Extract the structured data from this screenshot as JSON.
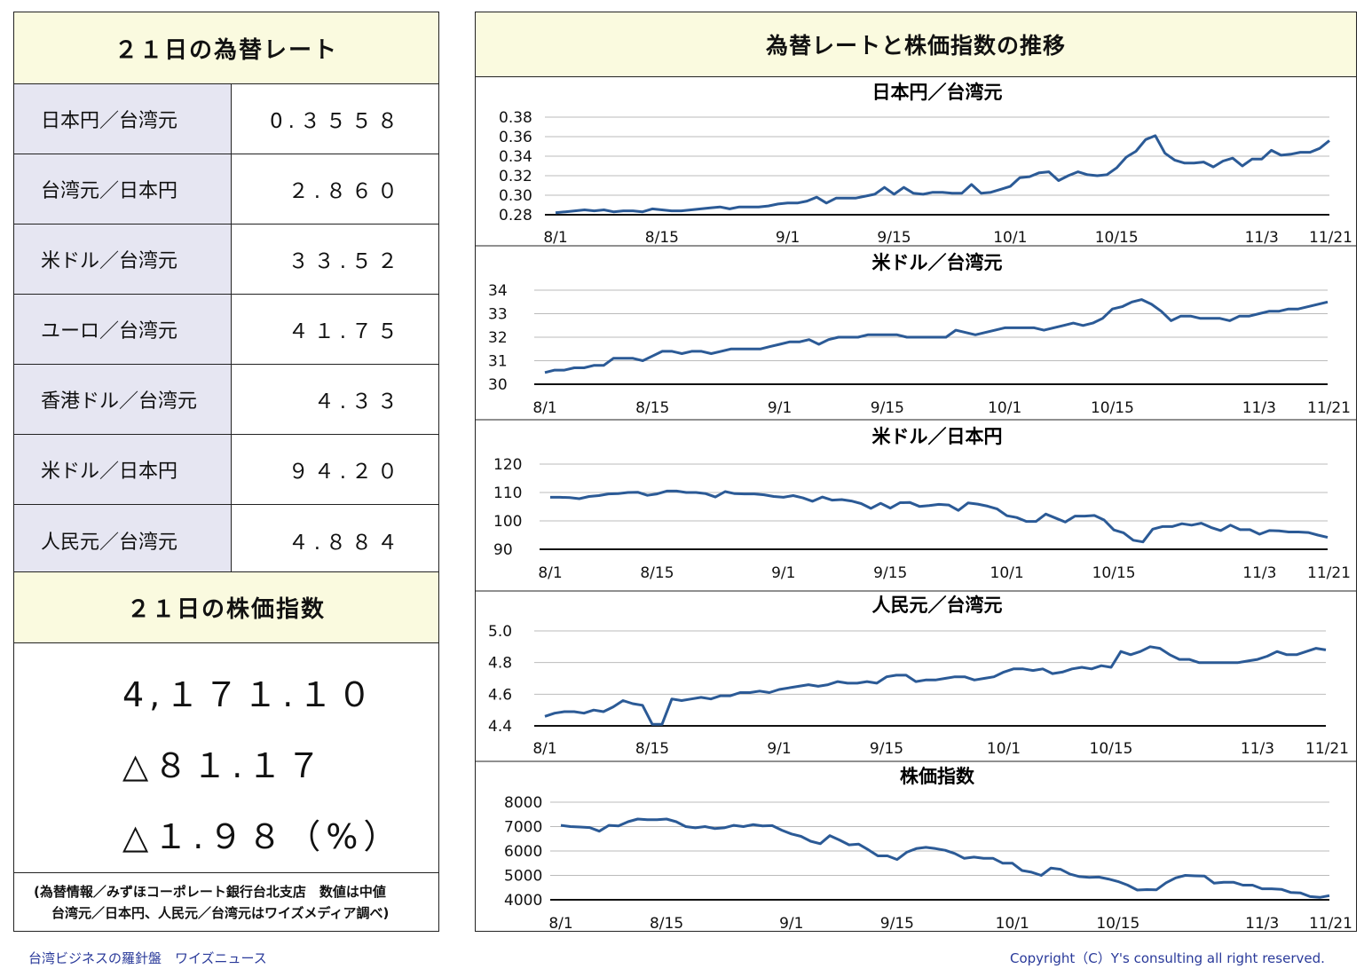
{
  "rates_panel": {
    "title": "２１日の為替レート",
    "rows": [
      {
        "name": "日本円／台湾元",
        "value": "0.３５５８"
      },
      {
        "name": "台湾元／日本円",
        "value": "２.８６０"
      },
      {
        "name": "米ドル／台湾元",
        "value": "３３.５２"
      },
      {
        "name": "ユーロ／台湾元",
        "value": "４１.７５"
      },
      {
        "name": "香港ドル／台湾元",
        "value": "４.３３"
      },
      {
        "name": "米ドル／日本円",
        "value": "９４.２０"
      },
      {
        "name": "人民元／台湾元",
        "value": "４.８８４"
      }
    ]
  },
  "stock_panel": {
    "title": "２１日の株価指数",
    "index_value": "4,１７１.１０",
    "change": "△８１.１７",
    "change_pct": "△１.９８（%）"
  },
  "source_note": {
    "line1": "(為替情報／みずほコーポレート銀行台北支店　数値は中値",
    "line2": "台湾元／日本円、人民元／台湾元はワイズメディア調べ)"
  },
  "charts_panel": {
    "title": "為替レートと株価指数の推移"
  },
  "footer": {
    "left": "台湾ビジネスの羅針盤　ワイズニュース",
    "right": "Copyright（C）Y's consulting all right reserved."
  },
  "colors": {
    "line": "#2b5a96",
    "header_bg": "#fafadf",
    "label_bg": "#e6e6f2"
  },
  "chart_data": [
    {
      "type": "line",
      "title": "日本円／台湾元",
      "x_tick_labels": [
        "8/1",
        "8/15",
        "9/1",
        "9/15",
        "10/1",
        "10/15",
        "11/3",
        "11/21"
      ],
      "y_tick_labels": [
        "0.38",
        "0.36",
        "0.34",
        "0.32",
        "0.30",
        "0.28"
      ],
      "ylim": [
        0.28,
        0.38
      ],
      "grid": true,
      "values": [
        0.282,
        0.283,
        0.284,
        0.285,
        0.284,
        0.285,
        0.283,
        0.284,
        0.284,
        0.283,
        0.286,
        0.285,
        0.284,
        0.284,
        0.285,
        0.286,
        0.287,
        0.288,
        0.286,
        0.288,
        0.288,
        0.288,
        0.289,
        0.291,
        0.292,
        0.292,
        0.294,
        0.298,
        0.292,
        0.297,
        0.297,
        0.297,
        0.299,
        0.301,
        0.308,
        0.301,
        0.308,
        0.302,
        0.301,
        0.303,
        0.303,
        0.302,
        0.302,
        0.311,
        0.302,
        0.303,
        0.306,
        0.309,
        0.318,
        0.319,
        0.323,
        0.324,
        0.315,
        0.32,
        0.324,
        0.321,
        0.32,
        0.321,
        0.328,
        0.339,
        0.345,
        0.357,
        0.361,
        0.343,
        0.336,
        0.333,
        0.333,
        0.334,
        0.329,
        0.335,
        0.338,
        0.33,
        0.337,
        0.337,
        0.346,
        0.341,
        0.342,
        0.344,
        0.344,
        0.348,
        0.356
      ]
    },
    {
      "type": "line",
      "title": "米ドル／台湾元",
      "x_tick_labels": [
        "8/1",
        "8/15",
        "9/1",
        "9/15",
        "10/1",
        "10/15",
        "11/3",
        "11/21"
      ],
      "y_tick_labels": [
        "34",
        "33",
        "32",
        "31",
        "30"
      ],
      "ylim": [
        30,
        34
      ],
      "grid": true,
      "values": [
        30.5,
        30.6,
        30.6,
        30.7,
        30.7,
        30.8,
        30.8,
        31.1,
        31.1,
        31.1,
        31.0,
        31.2,
        31.4,
        31.4,
        31.3,
        31.4,
        31.4,
        31.3,
        31.4,
        31.5,
        31.5,
        31.5,
        31.5,
        31.6,
        31.7,
        31.8,
        31.8,
        31.9,
        31.7,
        31.9,
        32.0,
        32.0,
        32.0,
        32.1,
        32.1,
        32.1,
        32.1,
        32.0,
        32.0,
        32.0,
        32.0,
        32.0,
        32.3,
        32.2,
        32.1,
        32.2,
        32.3,
        32.4,
        32.4,
        32.4,
        32.4,
        32.3,
        32.4,
        32.5,
        32.6,
        32.5,
        32.6,
        32.8,
        33.2,
        33.3,
        33.5,
        33.6,
        33.4,
        33.1,
        32.7,
        32.9,
        32.9,
        32.8,
        32.8,
        32.8,
        32.7,
        32.9,
        32.9,
        33.0,
        33.1,
        33.1,
        33.2,
        33.2,
        33.3,
        33.4,
        33.5
      ]
    },
    {
      "type": "line",
      "title": "米ドル／日本円",
      "x_tick_labels": [
        "8/1",
        "8/15",
        "9/1",
        "9/15",
        "10/1",
        "10/15",
        "11/3",
        "11/21"
      ],
      "y_tick_labels": [
        "120",
        "110",
        "100",
        "90"
      ],
      "ylim": [
        90,
        120
      ],
      "grid": true,
      "values": [
        108.3,
        108.3,
        108.2,
        107.8,
        108.6,
        108.9,
        109.5,
        109.6,
        110.0,
        110.1,
        109.0,
        109.5,
        110.5,
        110.5,
        110.0,
        110.0,
        109.6,
        108.4,
        110.3,
        109.6,
        109.5,
        109.5,
        109.2,
        108.6,
        108.3,
        108.9,
        108.1,
        106.9,
        108.4,
        107.3,
        107.5,
        107.0,
        106.1,
        104.4,
        106.2,
        104.5,
        106.4,
        106.5,
        105.1,
        105.4,
        105.8,
        105.6,
        103.7,
        106.3,
        105.9,
        105.2,
        104.2,
        101.8,
        101.2,
        99.8,
        99.8,
        102.4,
        101.0,
        99.6,
        101.7,
        101.7,
        101.9,
        100.3,
        96.8,
        95.8,
        93.2,
        92.6,
        97.1,
        98.0,
        98.0,
        99.0,
        98.5,
        99.2,
        97.7,
        96.6,
        98.5,
        96.9,
        96.9,
        95.3,
        96.6,
        96.5,
        96.1,
        96.1,
        95.9,
        95.0,
        94.2
      ]
    },
    {
      "type": "line",
      "title": "人民元／台湾元",
      "x_tick_labels": [
        "8/1",
        "8/15",
        "9/1",
        "9/15",
        "10/1",
        "10/15",
        "11/3",
        "11/21"
      ],
      "y_tick_labels": [
        "5.0",
        "4.8",
        "4.6",
        "4.4"
      ],
      "ylim": [
        4.4,
        5.0
      ],
      "grid": true,
      "values": [
        4.46,
        4.48,
        4.49,
        4.49,
        4.48,
        4.5,
        4.49,
        4.52,
        4.56,
        4.54,
        4.53,
        4.41,
        4.41,
        4.57,
        4.56,
        4.57,
        4.58,
        4.57,
        4.59,
        4.59,
        4.61,
        4.61,
        4.62,
        4.61,
        4.63,
        4.64,
        4.65,
        4.66,
        4.65,
        4.66,
        4.68,
        4.67,
        4.67,
        4.68,
        4.67,
        4.71,
        4.72,
        4.72,
        4.68,
        4.69,
        4.69,
        4.7,
        4.71,
        4.71,
        4.69,
        4.7,
        4.71,
        4.74,
        4.76,
        4.76,
        4.75,
        4.76,
        4.73,
        4.74,
        4.76,
        4.77,
        4.76,
        4.78,
        4.77,
        4.87,
        4.85,
        4.87,
        4.9,
        4.89,
        4.85,
        4.82,
        4.82,
        4.8,
        4.8,
        4.8,
        4.8,
        4.8,
        4.81,
        4.82,
        4.84,
        4.87,
        4.85,
        4.85,
        4.87,
        4.89,
        4.88
      ]
    },
    {
      "type": "line",
      "title": "株価指数",
      "x_tick_labels": [
        "8/1",
        "8/15",
        "9/1",
        "9/15",
        "10/1",
        "10/15",
        "11/3",
        "11/21"
      ],
      "y_tick_labels": [
        "8000",
        "7000",
        "6000",
        "5000",
        "4000"
      ],
      "ylim": [
        4000,
        8000
      ],
      "grid": true,
      "values": [
        7050,
        7000,
        6980,
        6960,
        6810,
        7050,
        7030,
        7200,
        7310,
        7280,
        7280,
        7310,
        7200,
        7000,
        6950,
        7000,
        6920,
        6950,
        7050,
        7000,
        7080,
        7030,
        7040,
        6850,
        6700,
        6600,
        6400,
        6300,
        6630,
        6450,
        6250,
        6280,
        6050,
        5800,
        5800,
        5650,
        5950,
        6100,
        6150,
        6100,
        6030,
        5900,
        5700,
        5750,
        5700,
        5700,
        5500,
        5500,
        5200,
        5130,
        5000,
        5300,
        5250,
        5050,
        4950,
        4920,
        4930,
        4850,
        4750,
        4600,
        4400,
        4420,
        4410,
        4700,
        4900,
        5000,
        4980,
        4970,
        4680,
        4720,
        4720,
        4600,
        4600,
        4450,
        4450,
        4430,
        4300,
        4280,
        4130,
        4100,
        4171
      ]
    }
  ]
}
